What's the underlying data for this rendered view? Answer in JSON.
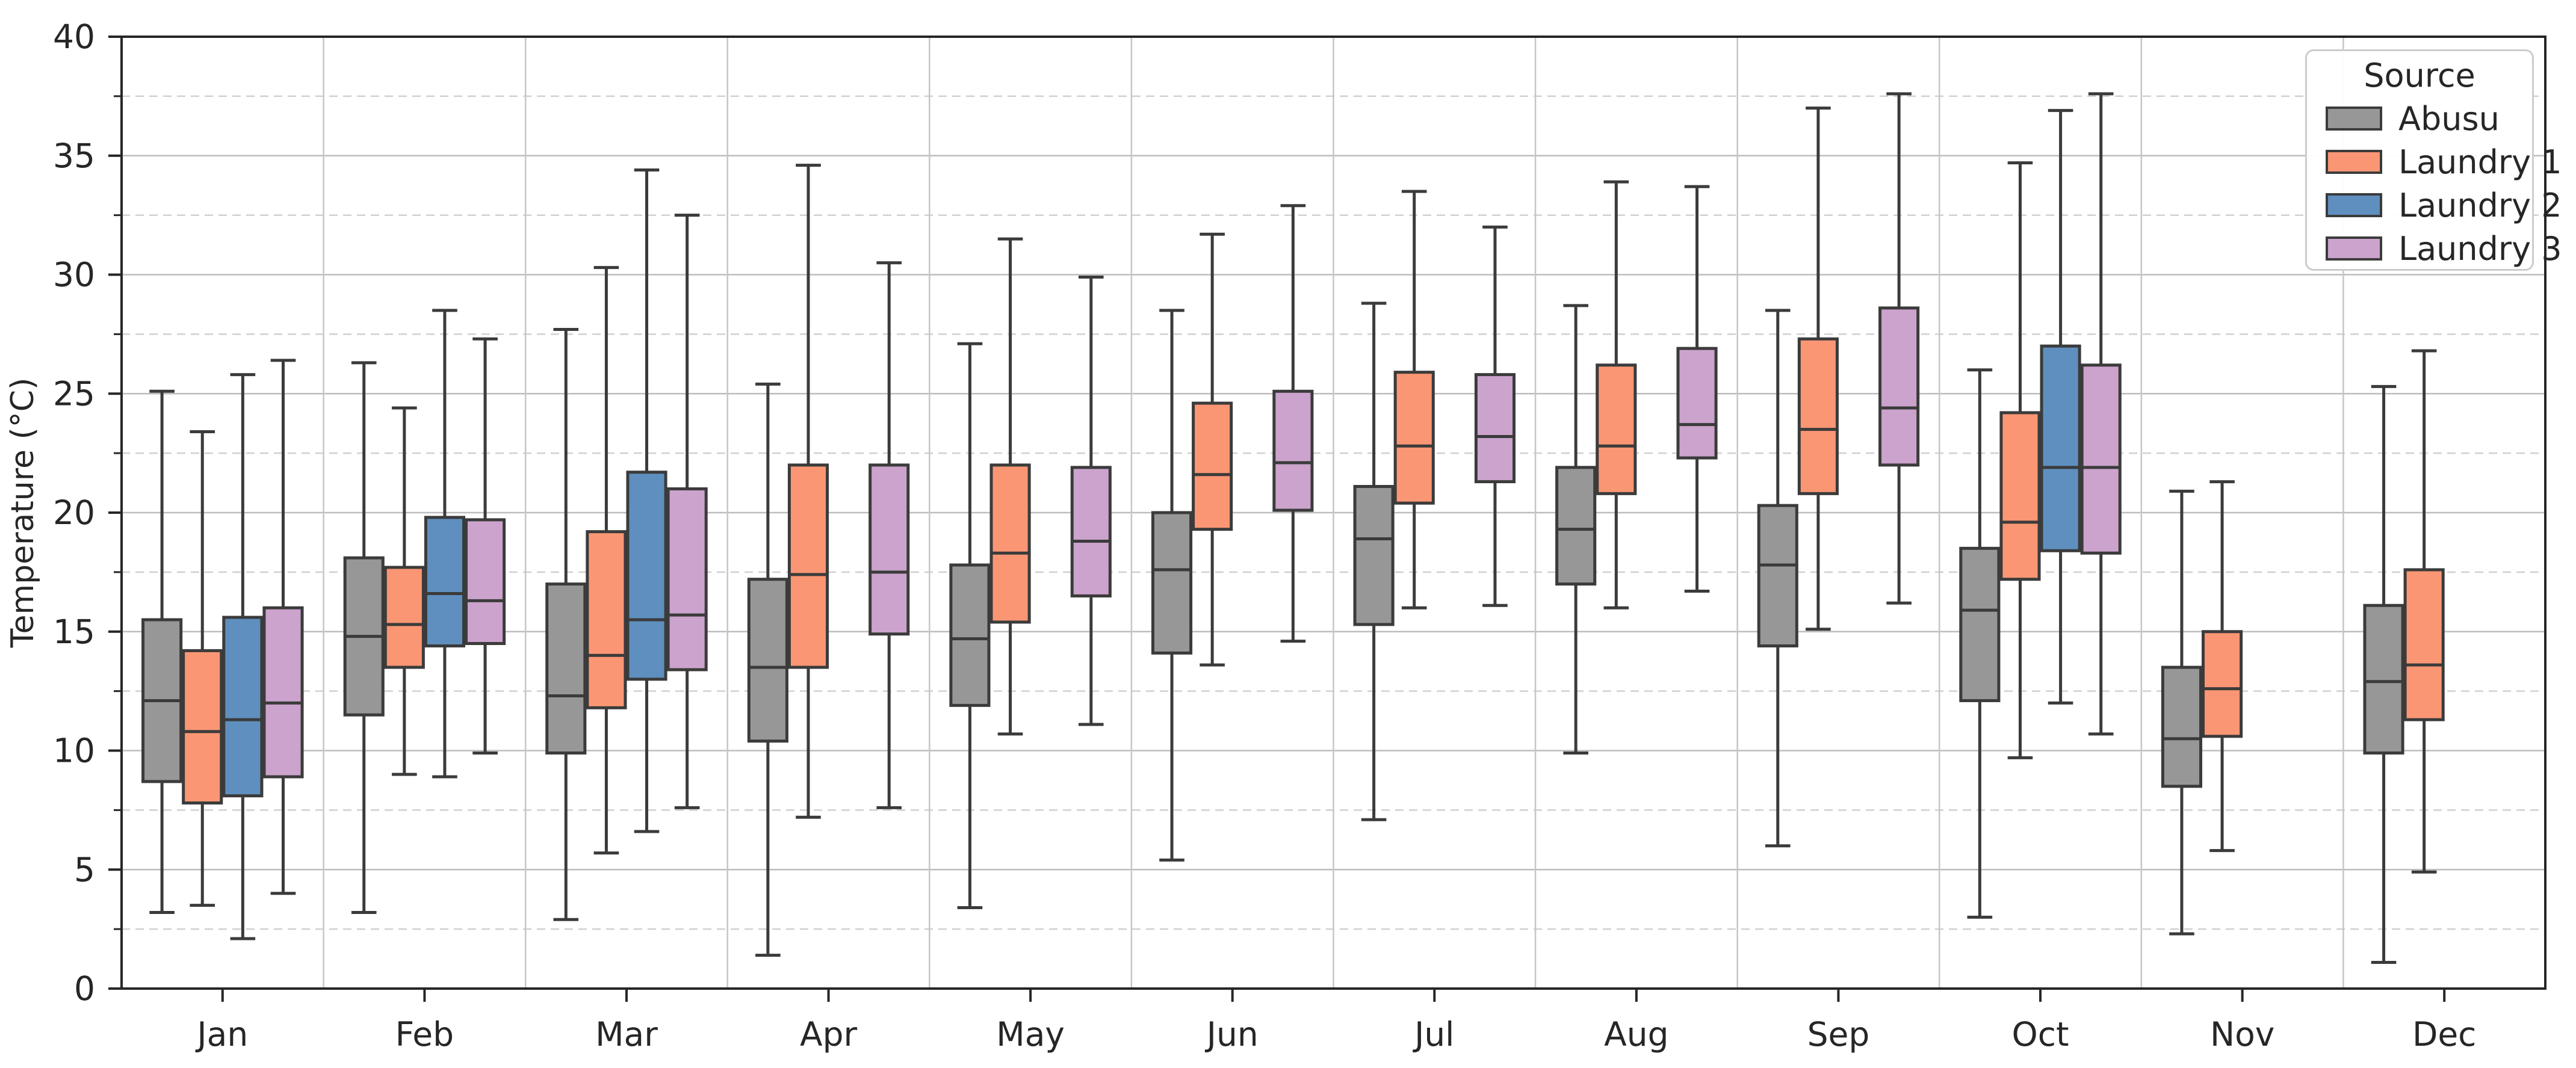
{
  "chart_data": {
    "type": "boxplot",
    "title": "",
    "xlabel": "",
    "ylabel": "Temperature (°C)",
    "ylim": [
      0,
      40
    ],
    "yticks": [
      0,
      5,
      10,
      15,
      20,
      25,
      30,
      35,
      40
    ],
    "minor_tick_step": 2.5,
    "grid": {
      "major": "solid",
      "minor": "dashed",
      "vertical_separators": "month boundaries"
    },
    "categories": [
      "Jan",
      "Feb",
      "Mar",
      "Apr",
      "May",
      "Jun",
      "Jul",
      "Aug",
      "Sep",
      "Oct",
      "Nov",
      "Dec"
    ],
    "legend": {
      "title": "Source",
      "position": "upper right"
    },
    "box_stats_order": [
      "whisker_low",
      "q1",
      "median",
      "q3",
      "whisker_high"
    ],
    "series": [
      {
        "name": "Abusu",
        "color": "#979797",
        "values": [
          [
            3.2,
            8.7,
            12.1,
            15.5,
            25.1
          ],
          [
            3.2,
            11.5,
            14.8,
            18.1,
            26.3
          ],
          [
            2.9,
            9.9,
            12.3,
            17.0,
            27.7
          ],
          [
            1.4,
            10.4,
            13.5,
            17.2,
            25.4
          ],
          [
            3.4,
            11.9,
            14.7,
            17.8,
            27.1
          ],
          [
            5.4,
            14.1,
            17.6,
            20.0,
            28.5
          ],
          [
            7.1,
            15.3,
            18.9,
            21.1,
            28.8
          ],
          [
            9.9,
            17.0,
            19.3,
            21.9,
            28.7
          ],
          [
            6.0,
            14.4,
            17.8,
            20.3,
            28.5
          ],
          [
            3.0,
            12.1,
            15.9,
            18.5,
            26.0
          ],
          [
            2.3,
            8.5,
            10.5,
            13.5,
            20.9
          ],
          [
            1.1,
            9.9,
            12.9,
            16.1,
            25.3
          ]
        ]
      },
      {
        "name": "Laundry 1",
        "color": "#FB9674",
        "values": [
          [
            3.5,
            7.8,
            10.8,
            14.2,
            23.4
          ],
          [
            9.0,
            13.5,
            15.3,
            17.7,
            24.4
          ],
          [
            5.7,
            11.8,
            14.0,
            19.2,
            30.3
          ],
          [
            7.2,
            13.5,
            17.4,
            22.0,
            34.6
          ],
          [
            10.7,
            15.4,
            18.3,
            22.0,
            31.5
          ],
          [
            13.6,
            19.3,
            21.6,
            24.6,
            31.7
          ],
          [
            16.0,
            20.4,
            22.8,
            25.9,
            33.5
          ],
          [
            16.0,
            20.8,
            22.8,
            26.2,
            33.9
          ],
          [
            15.1,
            20.8,
            23.5,
            27.3,
            37.0
          ],
          [
            9.7,
            17.2,
            19.6,
            24.2,
            34.7
          ],
          [
            5.8,
            10.6,
            12.6,
            15.0,
            21.3
          ],
          [
            4.9,
            11.3,
            13.6,
            17.6,
            26.8
          ]
        ]
      },
      {
        "name": "Laundry 2",
        "color": "#5E8FBE",
        "values": [
          [
            2.1,
            8.1,
            11.3,
            15.6,
            25.8
          ],
          [
            8.9,
            14.4,
            16.6,
            19.8,
            28.5
          ],
          [
            6.6,
            13.0,
            15.5,
            21.7,
            34.4
          ],
          null,
          null,
          null,
          null,
          null,
          null,
          [
            12.0,
            18.4,
            21.9,
            27.0,
            36.9
          ],
          null,
          null
        ]
      },
      {
        "name": "Laundry 3",
        "color": "#CBA3CC",
        "values": [
          [
            4.0,
            8.9,
            12.0,
            16.0,
            26.4
          ],
          [
            9.9,
            14.5,
            16.3,
            19.7,
            27.3
          ],
          [
            7.6,
            13.4,
            15.7,
            21.0,
            32.5
          ],
          [
            7.6,
            14.9,
            17.5,
            22.0,
            30.5
          ],
          [
            11.1,
            16.5,
            18.8,
            21.9,
            29.9
          ],
          [
            14.6,
            20.1,
            22.1,
            25.1,
            32.9
          ],
          [
            16.1,
            21.3,
            23.2,
            25.8,
            32.0
          ],
          [
            16.7,
            22.3,
            23.7,
            26.9,
            33.7
          ],
          [
            16.2,
            22.0,
            24.4,
            28.6,
            37.6
          ],
          [
            10.7,
            18.3,
            21.9,
            26.2,
            37.6
          ],
          null,
          null
        ]
      }
    ],
    "style": {
      "box_edge_color": "#3B3B3B",
      "spine_color": "#262626",
      "text_color": "#262626",
      "grid_major_color": "#BDBDBD",
      "grid_minor_color": "#D0D0D0",
      "separator_color": "#C6C6C6",
      "background": "#FFFFFF"
    }
  }
}
